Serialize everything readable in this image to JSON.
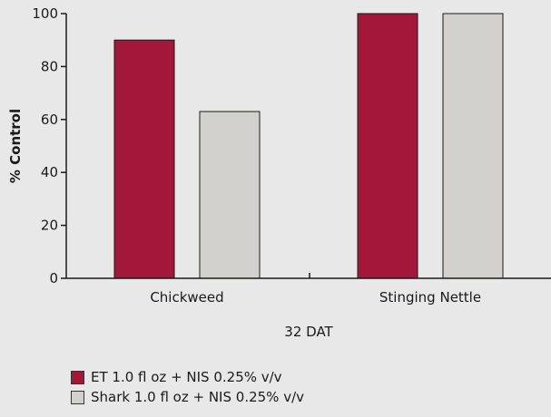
{
  "chart_data": {
    "type": "bar",
    "categories": [
      "Chickweed",
      "Stinging Nettle"
    ],
    "series": [
      {
        "name": "ET 1.0 fl oz + NIS 0.25% v/v",
        "values": [
          90,
          100
        ],
        "color": "#a3173a"
      },
      {
        "name": "Shark 1.0 fl oz + NIS 0.25% v/v",
        "values": [
          63,
          100
        ],
        "color": "#d3d1cd"
      }
    ],
    "title": "",
    "xlabel": "32 DAT",
    "ylabel": "% Control",
    "ylim": [
      0,
      100
    ],
    "yticks": [
      0,
      20,
      40,
      60,
      80,
      100
    ],
    "grid": false,
    "legend": "bottom-left"
  }
}
